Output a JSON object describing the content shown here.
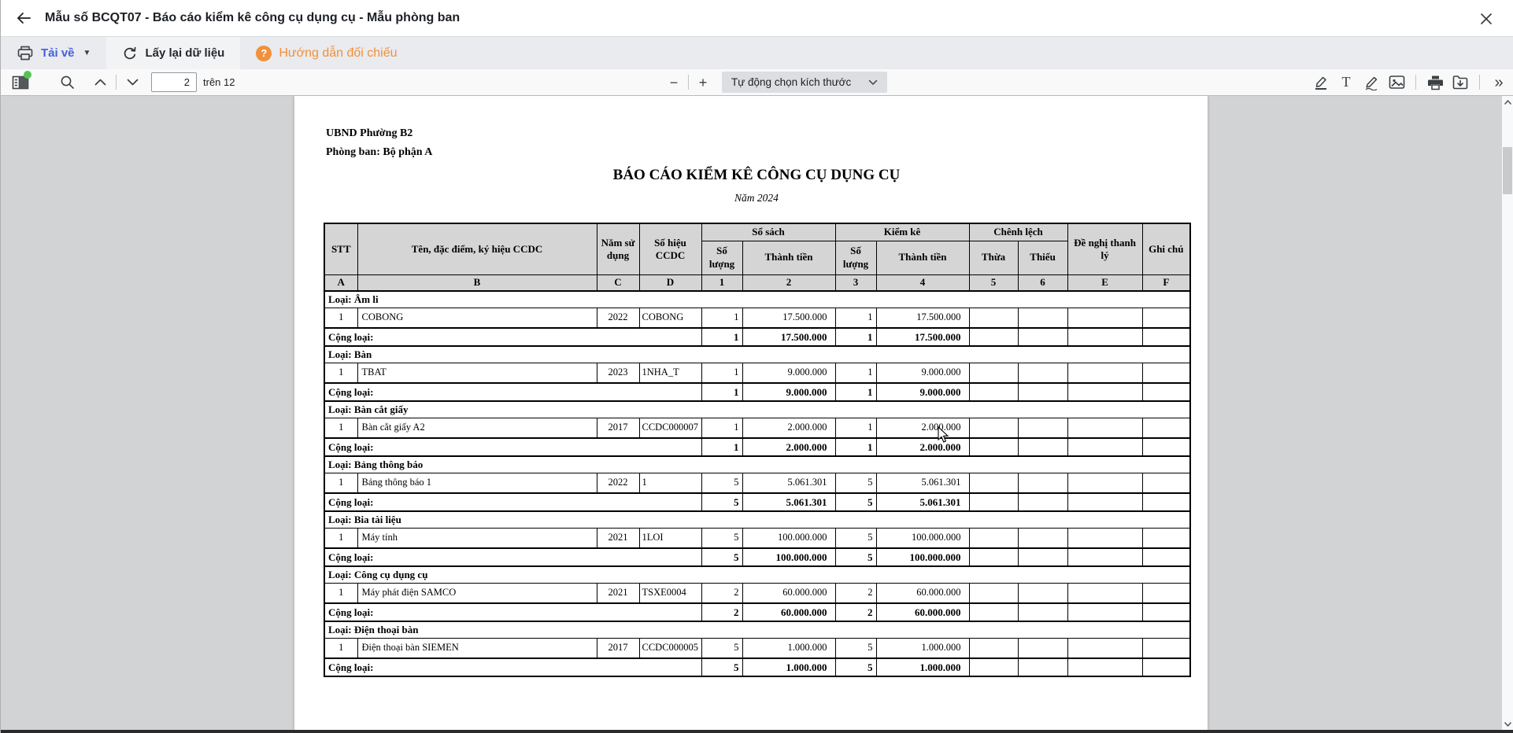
{
  "window": {
    "title": "Mẫu số BCQT07 - Báo cáo kiểm kê công cụ dụng cụ - Mẫu phòng ban"
  },
  "actions": {
    "download_label": "Tải về",
    "refresh_label": "Lấy lại dữ liệu",
    "help_label": "Hướng dẫn đối chiếu",
    "help_badge": "?"
  },
  "pdf_toolbar": {
    "page_value": "2",
    "page_total_label": "trên 12",
    "zoom_out_glyph": "−",
    "zoom_in_glyph": "+",
    "fit_label": "Tự động chọn kích thước",
    "text_tool_glyph": "T",
    "more_tools_glyph": "»"
  },
  "colors": {
    "accent_blue": "#4160e1",
    "accent_orange": "#f0913c",
    "green_dot": "#52c454",
    "header_gray": "#d5d5d5"
  },
  "document": {
    "org_line1": "UBND Phường B2",
    "org_line2": "Phòng ban: Bộ phận A",
    "title": "BÁO CÁO KIỂM KÊ CÔNG CỤ DỤNG CỤ",
    "subtitle": "Năm 2024"
  },
  "table": {
    "headers": {
      "stt": "STT",
      "name": "Tên, đặc điểm, ký hiệu CCDC",
      "year": "Năm sử dụng",
      "code": "Số hiệu CCDC",
      "book_group": "Sổ sách",
      "inventory_group": "Kiểm kê",
      "difference_group": "Chênh lệch",
      "qty": "Số lượng",
      "amount": "Thành tiền",
      "surplus": "Thừa",
      "shortage": "Thiếu",
      "liquidation": "Đề nghị thanh lý",
      "note": "Ghi chú"
    },
    "letters": [
      "A",
      "B",
      "C",
      "D",
      "1",
      "2",
      "3",
      "4",
      "5",
      "6",
      "E",
      "F"
    ],
    "total_label": "Cộng loại:",
    "groups": [
      {
        "label": "Loại: Âm li",
        "items": [
          {
            "stt": "1",
            "name": "COBONG",
            "year": "2022",
            "code": "COBONG",
            "qty_book": "1",
            "amt_book": "17.500.000",
            "qty_inv": "1",
            "amt_inv": "17.500.000",
            "surplus": "",
            "shortage": "",
            "liquidation": "",
            "note": ""
          }
        ],
        "total": {
          "qty_book": "1",
          "amt_book": "17.500.000",
          "qty_inv": "1",
          "amt_inv": "17.500.000",
          "surplus": "",
          "shortage": "",
          "liquidation": "",
          "note": ""
        }
      },
      {
        "label": "Loại: Bàn",
        "items": [
          {
            "stt": "1",
            "name": "TBAT",
            "year": "2023",
            "code": "1NHA_T",
            "qty_book": "1",
            "amt_book": "9.000.000",
            "qty_inv": "1",
            "amt_inv": "9.000.000",
            "surplus": "",
            "shortage": "",
            "liquidation": "",
            "note": ""
          }
        ],
        "total": {
          "qty_book": "1",
          "amt_book": "9.000.000",
          "qty_inv": "1",
          "amt_inv": "9.000.000",
          "surplus": "",
          "shortage": "",
          "liquidation": "",
          "note": ""
        }
      },
      {
        "label": "Loại: Bàn cắt giấy",
        "items": [
          {
            "stt": "1",
            "name": "Bàn cắt giấy A2",
            "year": "2017",
            "code": "CCDC000007",
            "qty_book": "1",
            "amt_book": "2.000.000",
            "qty_inv": "1",
            "amt_inv": "2.000.000",
            "surplus": "",
            "shortage": "",
            "liquidation": "",
            "note": ""
          }
        ],
        "total": {
          "qty_book": "1",
          "amt_book": "2.000.000",
          "qty_inv": "1",
          "amt_inv": "2.000.000",
          "surplus": "",
          "shortage": "",
          "liquidation": "",
          "note": ""
        }
      },
      {
        "label": "Loại: Bảng thông báo",
        "items": [
          {
            "stt": "1",
            "name": "Bảng thông báo 1",
            "year": "2022",
            "code": "1",
            "qty_book": "5",
            "amt_book": "5.061.301",
            "qty_inv": "5",
            "amt_inv": "5.061.301",
            "surplus": "",
            "shortage": "",
            "liquidation": "",
            "note": ""
          }
        ],
        "total": {
          "qty_book": "5",
          "amt_book": "5.061.301",
          "qty_inv": "5",
          "amt_inv": "5.061.301",
          "surplus": "",
          "shortage": "",
          "liquidation": "",
          "note": ""
        }
      },
      {
        "label": "Loại: Bia tài liệu",
        "items": [
          {
            "stt": "1",
            "name": "Máy tính",
            "year": "2021",
            "code": "1LOI",
            "qty_book": "5",
            "amt_book": "100.000.000",
            "qty_inv": "5",
            "amt_inv": "100.000.000",
            "surplus": "",
            "shortage": "",
            "liquidation": "",
            "note": ""
          }
        ],
        "total": {
          "qty_book": "5",
          "amt_book": "100.000.000",
          "qty_inv": "5",
          "amt_inv": "100.000.000",
          "surplus": "",
          "shortage": "",
          "liquidation": "",
          "note": ""
        }
      },
      {
        "label": "Loại: Công cụ dụng cụ",
        "items": [
          {
            "stt": "1",
            "name": "Máy phát điện SAMCO",
            "year": "2021",
            "code": "TSXE0004",
            "qty_book": "2",
            "amt_book": "60.000.000",
            "qty_inv": "2",
            "amt_inv": "60.000.000",
            "surplus": "",
            "shortage": "",
            "liquidation": "",
            "note": ""
          }
        ],
        "total": {
          "qty_book": "2",
          "amt_book": "60.000.000",
          "qty_inv": "2",
          "amt_inv": "60.000.000",
          "surplus": "",
          "shortage": "",
          "liquidation": "",
          "note": ""
        }
      },
      {
        "label": "Loại: Điện thoại bàn",
        "items": [
          {
            "stt": "1",
            "name": "Điện thoại bàn SIEMEN",
            "year": "2017",
            "code": "CCDC000005",
            "qty_book": "5",
            "amt_book": "1.000.000",
            "qty_inv": "5",
            "amt_inv": "1.000.000",
            "surplus": "",
            "shortage": "",
            "liquidation": "",
            "note": ""
          }
        ],
        "total": {
          "qty_book": "5",
          "amt_book": "1.000.000",
          "qty_inv": "5",
          "amt_inv": "1.000.000",
          "surplus": "",
          "shortage": "",
          "liquidation": "",
          "note": ""
        }
      }
    ]
  }
}
